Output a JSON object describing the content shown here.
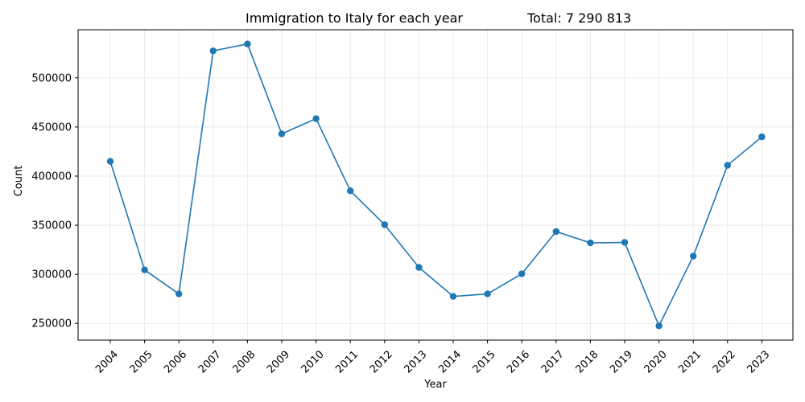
{
  "chart_data": {
    "type": "line",
    "title": "Immigration to Italy for each year",
    "total_label": "Total: 7 290 813",
    "xlabel": "Year",
    "ylabel": "Count",
    "x": [
      "2004",
      "2005",
      "2006",
      "2007",
      "2008",
      "2009",
      "2010",
      "2011",
      "2012",
      "2013",
      "2014",
      "2015",
      "2016",
      "2017",
      "2018",
      "2019",
      "2020",
      "2021",
      "2022",
      "2023"
    ],
    "series": [
      {
        "values": [
          415000,
          304500,
          280000,
          527500,
          534500,
          443000,
          458500,
          385000,
          350500,
          307000,
          277500,
          280000,
          300500,
          343500,
          332000,
          332500,
          247500,
          318500,
          411000,
          440000
        ],
        "color": "#1f77b4",
        "marker": "circle"
      }
    ],
    "yticks": [
      250000,
      300000,
      350000,
      400000,
      450000,
      500000
    ],
    "ylim": [
      233000,
      549000
    ],
    "grid": true,
    "x_tick_rotation": 45
  }
}
